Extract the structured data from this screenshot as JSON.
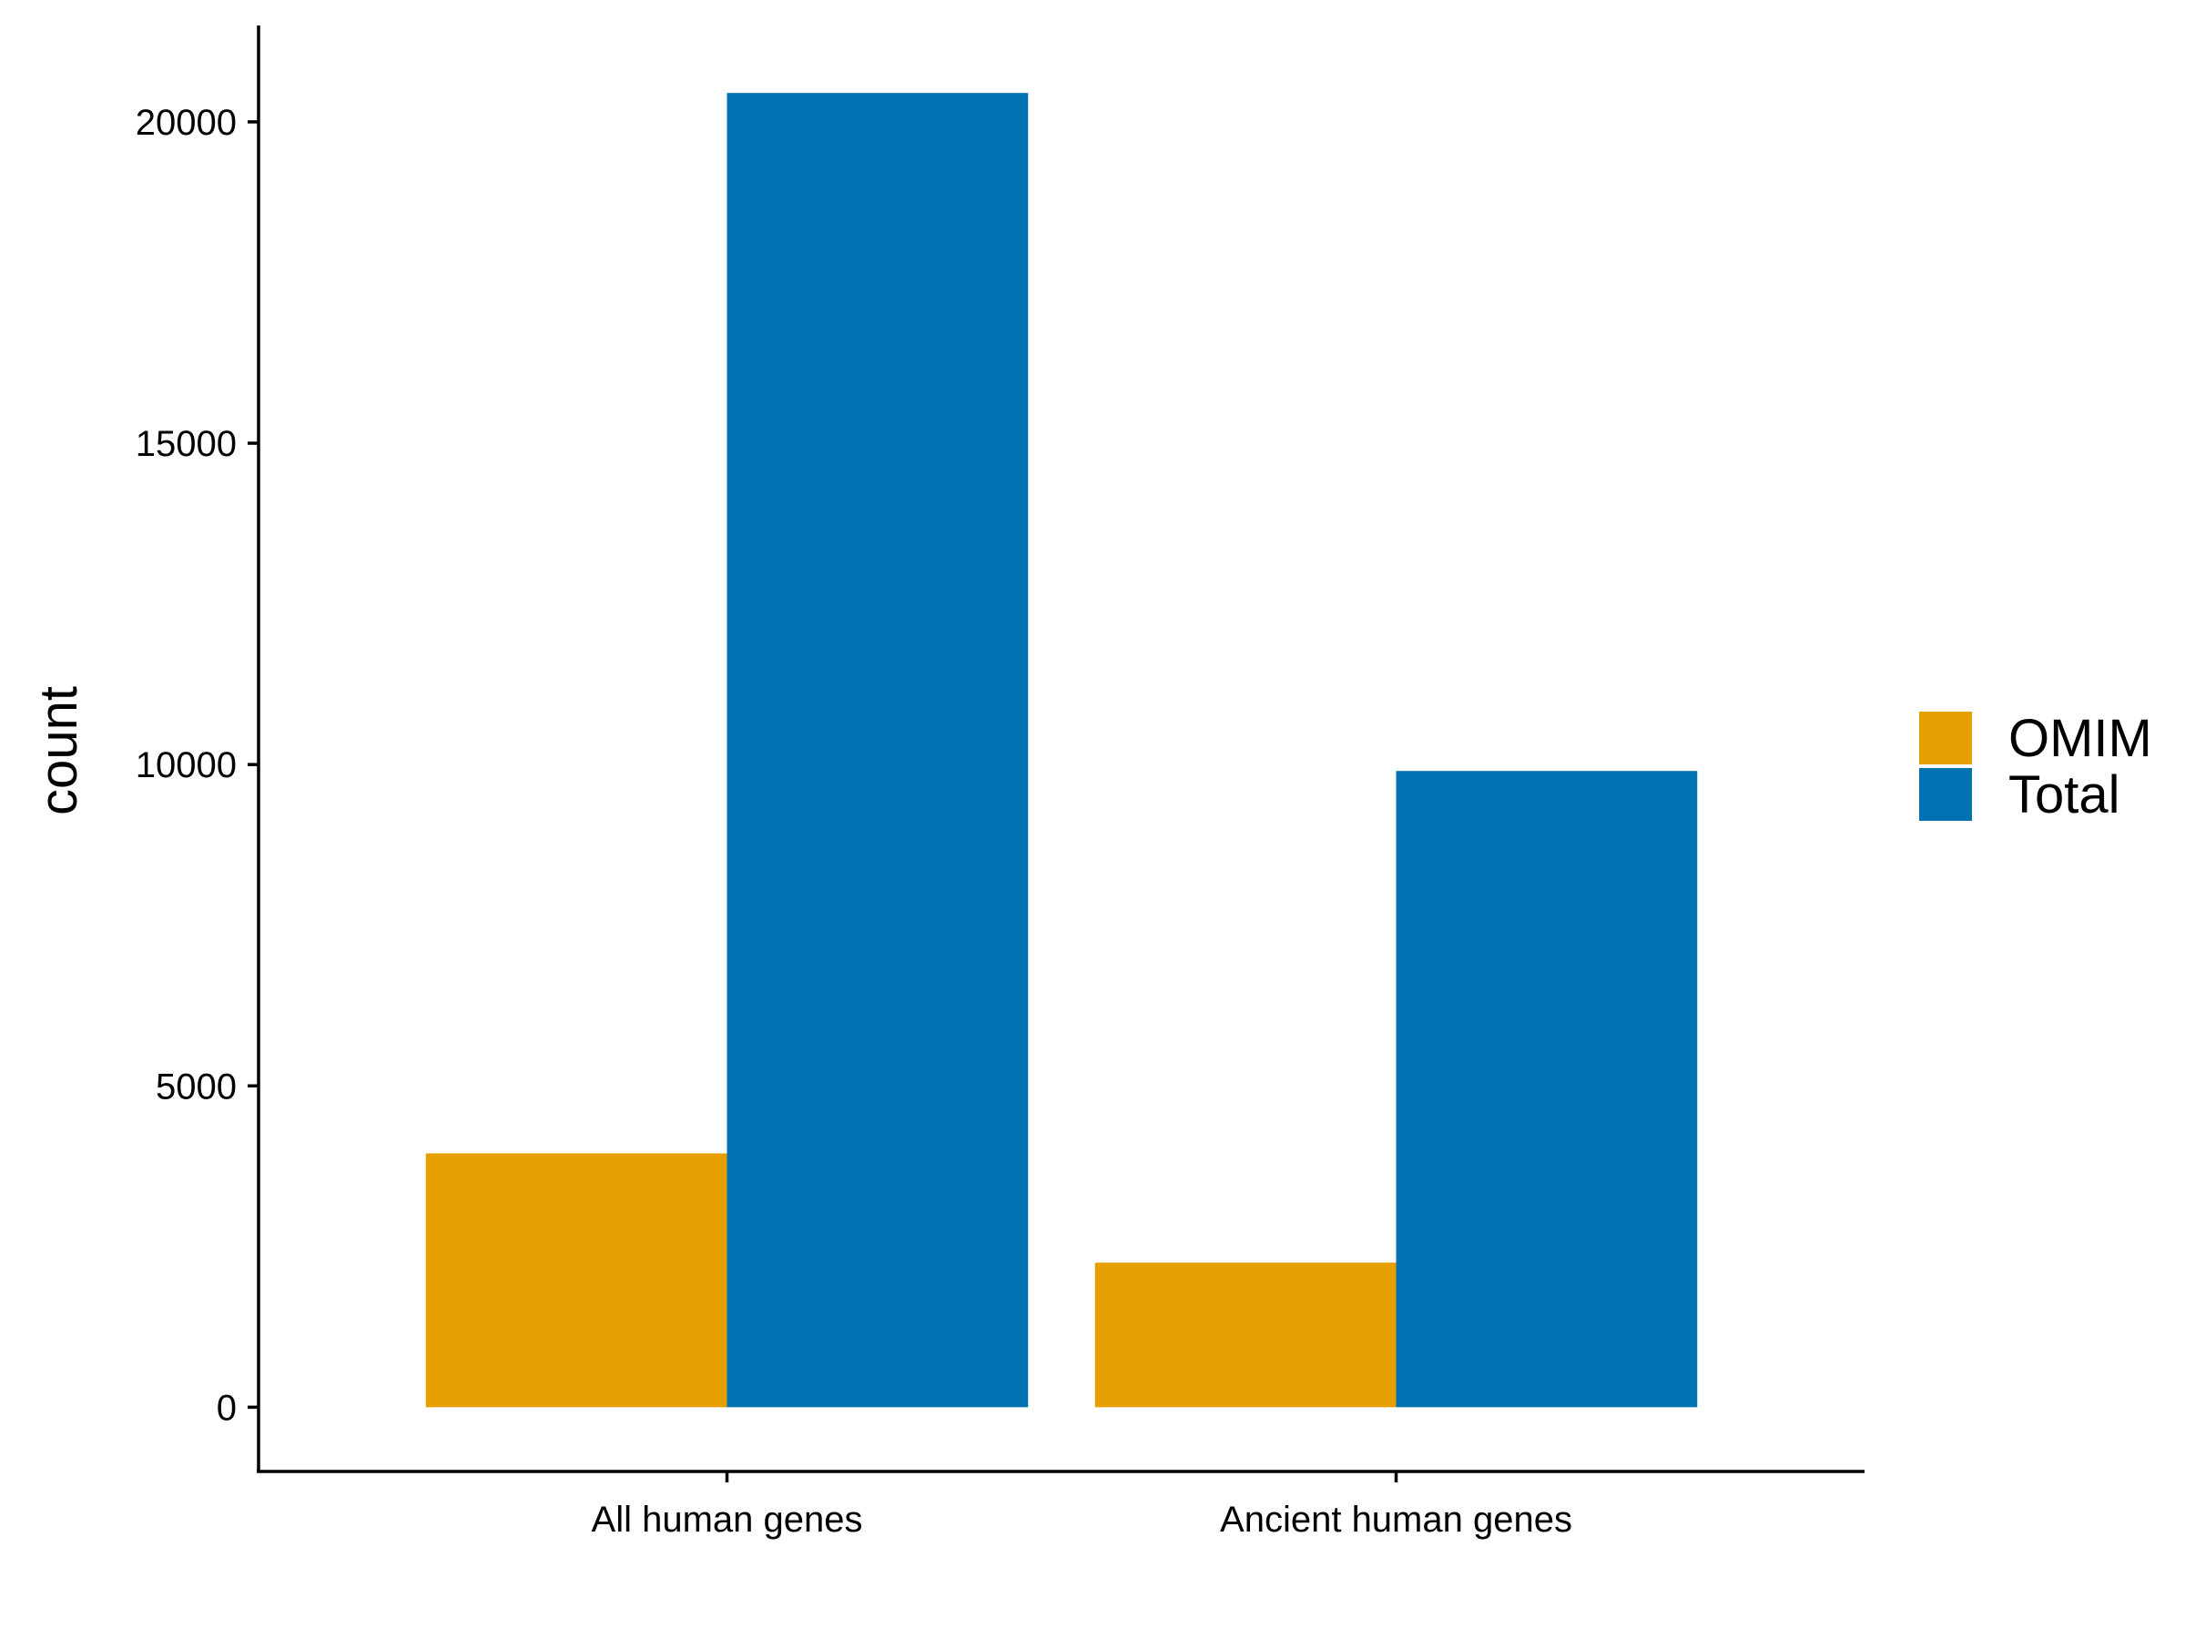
{
  "chart_data": {
    "type": "bar",
    "categories": [
      "All human genes",
      "Ancient human genes"
    ],
    "series": [
      {
        "name": "OMIM",
        "color": "#E69F00",
        "values": [
          3950,
          2250
        ]
      },
      {
        "name": "Total",
        "color": "#0072B2",
        "values": [
          20450,
          9900
        ]
      }
    ],
    "title": "",
    "xlabel": "",
    "ylabel": "count",
    "ylim": [
      -1000,
      21500
    ],
    "yticks": [
      0,
      5000,
      10000,
      15000,
      20000
    ],
    "grid": false,
    "legend_position": "right"
  }
}
